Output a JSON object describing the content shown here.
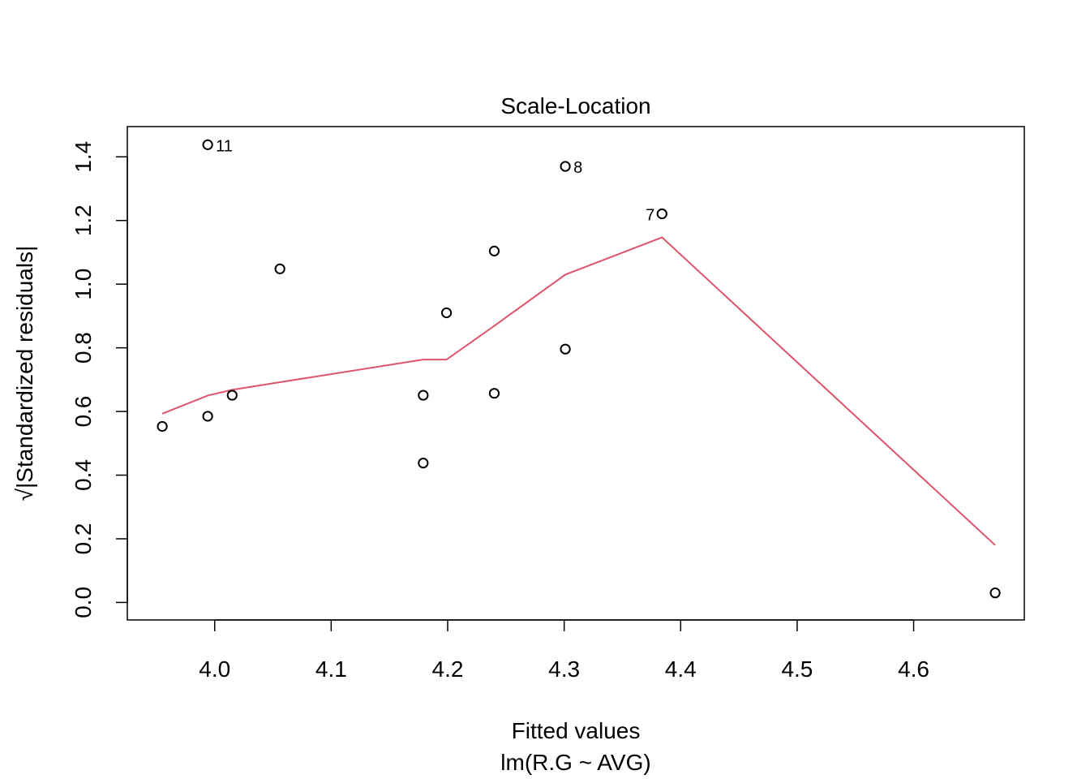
{
  "chart_data": {
    "type": "scatter",
    "title": "Scale-Location",
    "xlabel": "Fitted values",
    "subtitle": "lm(R.G ~ AVG)",
    "ylabel": "√|Standardized residuals|",
    "xlim": [
      3.925,
      4.695
    ],
    "ylim": [
      -0.055,
      1.495
    ],
    "x_ticks": [
      "4.0",
      "4.1",
      "4.2",
      "4.3",
      "4.4",
      "4.5",
      "4.6"
    ],
    "y_ticks": [
      "0.0",
      "0.2",
      "0.4",
      "0.6",
      "0.8",
      "1.0",
      "1.2",
      "1.4"
    ],
    "points": [
      {
        "x": 3.955,
        "y": 0.553
      },
      {
        "x": 3.994,
        "y": 0.585
      },
      {
        "x": 3.994,
        "y": 1.438,
        "label": "11"
      },
      {
        "x": 4.015,
        "y": 0.651
      },
      {
        "x": 4.056,
        "y": 1.048
      },
      {
        "x": 4.179,
        "y": 0.438
      },
      {
        "x": 4.179,
        "y": 0.651
      },
      {
        "x": 4.199,
        "y": 0.91
      },
      {
        "x": 4.24,
        "y": 0.657
      },
      {
        "x": 4.24,
        "y": 1.104
      },
      {
        "x": 4.301,
        "y": 0.796
      },
      {
        "x": 4.301,
        "y": 1.37,
        "label": "8"
      },
      {
        "x": 4.384,
        "y": 1.221,
        "label": "7"
      },
      {
        "x": 4.67,
        "y": 0.03
      }
    ],
    "smooth_line": {
      "color": "#DF536B",
      "x": [
        3.955,
        3.994,
        4.015,
        4.056,
        4.179,
        4.199,
        4.24,
        4.301,
        4.384,
        4.67
      ],
      "y": [
        0.593,
        0.65,
        0.668,
        0.692,
        0.763,
        0.763,
        0.869,
        1.03,
        1.147,
        0.18
      ]
    },
    "grid": false,
    "point_color": "#000000"
  }
}
